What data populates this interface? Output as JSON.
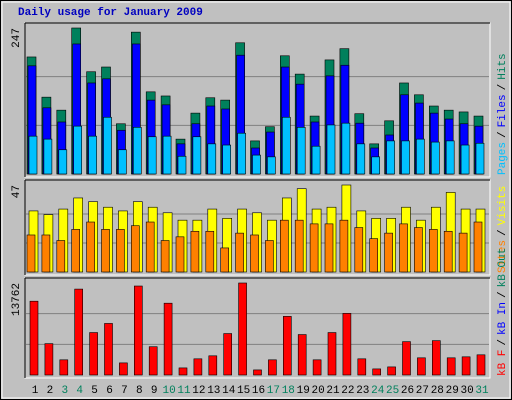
{
  "chart_data": {
    "type": "bar",
    "title": "Daily usage for January 2009",
    "categories": [
      "1",
      "2",
      "3",
      "4",
      "5",
      "6",
      "7",
      "8",
      "9",
      "10",
      "11",
      "12",
      "13",
      "14",
      "15",
      "16",
      "17",
      "18",
      "19",
      "20",
      "21",
      "22",
      "23",
      "24",
      "25",
      "26",
      "27",
      "28",
      "29",
      "30",
      "31"
    ],
    "category_colors": [
      "#000000",
      "#000000",
      "#00805c",
      "#00805c",
      "#000000",
      "#000000",
      "#000000",
      "#000000",
      "#000000",
      "#00805c",
      "#00805c",
      "#000000",
      "#000000",
      "#000000",
      "#000000",
      "#000000",
      "#00805c",
      "#00805c",
      "#000000",
      "#000000",
      "#000000",
      "#000000",
      "#000000",
      "#00805c",
      "#00805c",
      "#000000",
      "#000000",
      "#000000",
      "#000000",
      "#000000",
      "#00805c"
    ],
    "legend_separator": "/",
    "panels": [
      {
        "ylim": [
          0,
          247
        ],
        "yticks": [
          247
        ],
        "series": [
          {
            "name": "Pages",
            "color": "#00c0ff",
            "values": [
              64,
              59,
              41,
              81,
              64,
              96,
              41,
              79,
              63,
              64,
              30,
              63,
              51,
              49,
              69,
              32,
              29,
              96,
              79,
              47,
              83,
              86,
              51,
              29,
              56,
              56,
              59,
              54,
              56,
              49,
              52
            ]
          },
          {
            "name": "Files",
            "color": "#0000ff",
            "values": [
              183,
              112,
              88,
              220,
              154,
              161,
              74,
              220,
              125,
              117,
              51,
              85,
              115,
              110,
              201,
              44,
              71,
              181,
              152,
              88,
              166,
              184,
              86,
              44,
              66,
              134,
              120,
              103,
              93,
              85,
              81
            ]
          },
          {
            "name": "Hits",
            "color": "#00805c",
            "values": [
              198,
              130,
              108,
              247,
              173,
              181,
              85,
              240,
              139,
              132,
              59,
              103,
              129,
              125,
              222,
              56,
              80,
              200,
              169,
              98,
              193,
              212,
              102,
              51,
              90,
              154,
              134,
              115,
              108,
              105,
              98
            ]
          }
        ]
      },
      {
        "ylim": [
          0,
          47
        ],
        "yticks": [
          47
        ],
        "series": [
          {
            "name": "Sites",
            "color": "#ff8000",
            "values": [
              20,
              20,
              17,
              23,
              27,
              23,
              23,
              25,
              27,
              17,
              19,
              22,
              22,
              13,
              21,
              20,
              17,
              28,
              28,
              26,
              26,
              28,
              24,
              18,
              21,
              26,
              24,
              23,
              22,
              21,
              27
            ]
          },
          {
            "name": "Visits",
            "color": "#ffff00",
            "values": [
              33,
              31,
              34,
              40,
              38,
              35,
              33,
              38,
              35,
              32,
              28,
              28,
              34,
              29,
              34,
              32,
              28,
              40,
              45,
              34,
              35,
              47,
              33,
              29,
              29,
              35,
              28,
              35,
              43,
              34,
              34
            ]
          }
        ]
      },
      {
        "ylim": [
          0,
          13762
        ],
        "yticks": [
          13762
        ],
        "series": [
          {
            "name": "kB F",
            "color": "#ff0000",
            "values": [
              11040,
              4690,
              2270,
              12850,
              6350,
              7710,
              1810,
              13310,
              4230,
              10740,
              1060,
              2420,
              2870,
              6200,
              13762,
              760,
              2270,
              8770,
              6050,
              2270,
              6350,
              9220,
              2420,
              910,
              1210,
              4990,
              2570,
              5140,
              2570,
              2720,
              3020
            ]
          }
        ],
        "extra_legend": [
          {
            "name": "kB In",
            "color": "#0000ff"
          },
          {
            "name": "kB Out",
            "color": "#00805c"
          }
        ]
      }
    ]
  }
}
